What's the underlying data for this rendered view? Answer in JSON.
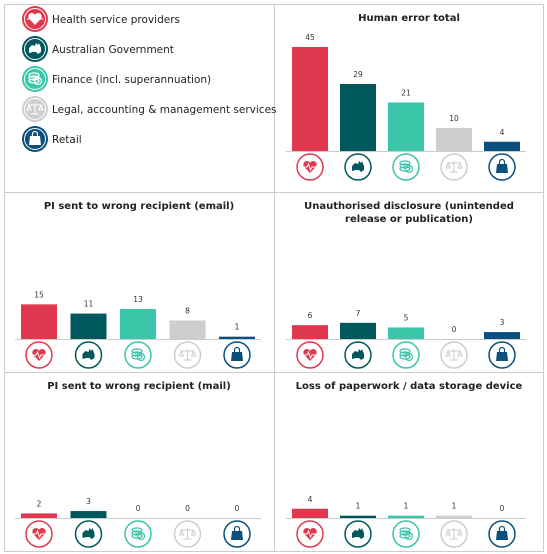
{
  "legend": [
    {
      "name": "Health service providers",
      "color": "#e0394f"
    },
    {
      "name": "Australian Government",
      "color": "#00585c"
    },
    {
      "name": "Finance (incl. superannuation)",
      "color": "#3bc5a9"
    },
    {
      "name": "Legal, accounting & management services",
      "color": "#cfcdce"
    },
    {
      "name": "Retail",
      "color": "#0b4f7c"
    }
  ],
  "chart_data": [
    {
      "type": "bar",
      "title": "Human error total",
      "values": [
        45,
        29,
        21,
        10,
        4
      ],
      "ylim": [
        0,
        45
      ]
    },
    {
      "type": "bar",
      "title": "PI sent to wrong recipient (email)",
      "values": [
        15,
        11,
        13,
        8,
        1
      ],
      "ylim": [
        0,
        45
      ]
    },
    {
      "type": "bar",
      "title": "Unauthorised disclosure (unintended release or publication)",
      "values": [
        6,
        7,
        5,
        0,
        3
      ],
      "ylim": [
        0,
        45
      ]
    },
    {
      "type": "bar",
      "title": "PI sent to wrong recipient (mail)",
      "values": [
        2,
        3,
        0,
        0,
        0
      ],
      "ylim": [
        0,
        45
      ]
    },
    {
      "type": "bar",
      "title": "Loss of paperwork / data storage device",
      "values": [
        4,
        1,
        1,
        1,
        0
      ],
      "ylim": [
        0,
        45
      ]
    }
  ]
}
